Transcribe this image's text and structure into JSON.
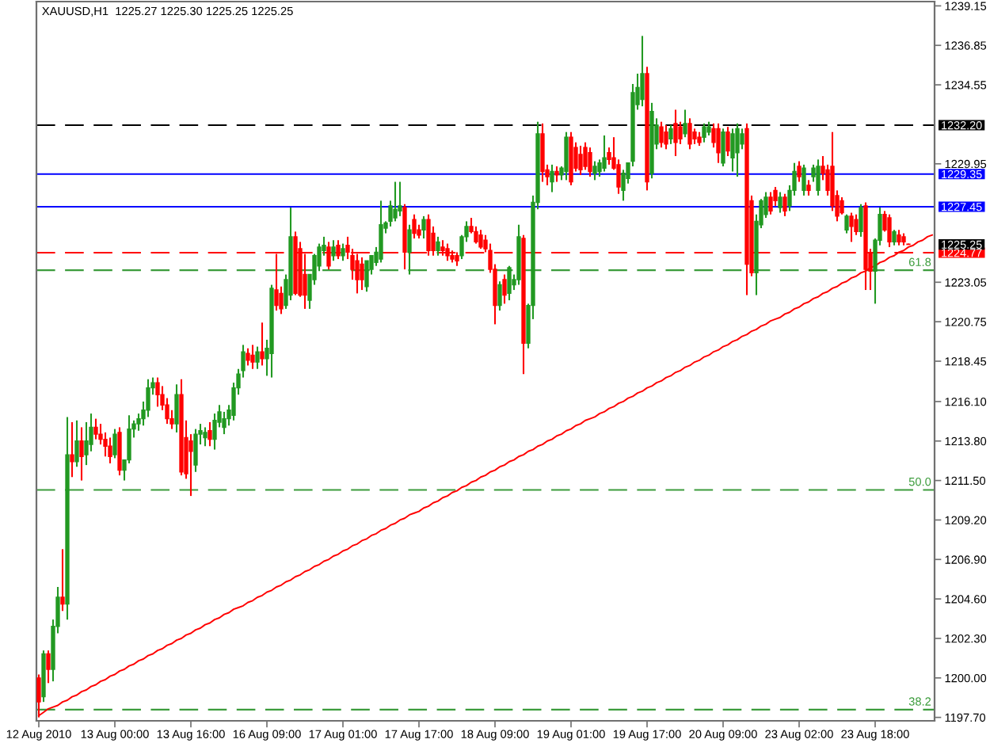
{
  "chart_data": {
    "type": "candlestick",
    "title": "XAUUSD,H1  1225.27 1225.30 1225.25 1225.25",
    "categories": [
      "12 Aug 2010",
      null,
      null,
      null,
      null,
      null,
      null,
      null,
      null,
      null,
      null,
      null,
      null,
      null,
      null,
      null,
      "13 Aug 00:00",
      null,
      null,
      null,
      null,
      null,
      null,
      null,
      null,
      null,
      null,
      null,
      null,
      null,
      null,
      null,
      "13 Aug 16:00",
      null,
      null,
      null,
      null,
      null,
      null,
      null,
      null,
      null,
      null,
      null,
      null,
      null,
      null,
      null,
      "16 Aug 09:00",
      null,
      null,
      null,
      null,
      null,
      null,
      null,
      null,
      null,
      null,
      null,
      null,
      null,
      null,
      null,
      "17 Aug 01:00",
      null,
      null,
      null,
      null,
      null,
      null,
      null,
      null,
      null,
      null,
      null,
      null,
      null,
      null,
      null,
      "17 Aug 17:00",
      null,
      null,
      null,
      null,
      null,
      null,
      null,
      null,
      null,
      null,
      null,
      null,
      null,
      null,
      null,
      "18 Aug 09:00",
      null,
      null,
      null,
      null,
      null,
      null,
      null,
      null,
      null,
      null,
      null,
      null,
      null,
      null,
      null,
      "19 Aug 01:00",
      null,
      null,
      null,
      null,
      null,
      null,
      null,
      null,
      null,
      null,
      null,
      null,
      null,
      null,
      null,
      "19 Aug 17:00",
      null,
      null,
      null,
      null,
      null,
      null,
      null,
      null,
      null,
      null,
      null,
      null,
      null,
      null,
      null,
      "20 Aug 09:00",
      null,
      null,
      null,
      null,
      null,
      null,
      null,
      null,
      null,
      null,
      null,
      null,
      null,
      null,
      null,
      "23 Aug 02:00",
      null,
      null,
      null,
      null,
      null,
      null,
      null,
      null,
      null,
      null,
      null,
      null,
      null,
      null,
      null,
      "23 Aug 18:00",
      null,
      null,
      null,
      null,
      null,
      null,
      null,
      null,
      null,
      null,
      null,
      null
    ],
    "ohlc": [
      [
        1200.0,
        1200.2,
        1197.7,
        1198.6
      ],
      [
        1198.9,
        1201.6,
        1198.6,
        1201.4
      ],
      [
        1201.4,
        1201.6,
        1199.7,
        1200.5
      ],
      [
        1200.5,
        1203.4,
        1199.8,
        1203.0
      ],
      [
        1203.0,
        1205.3,
        1202.6,
        1204.7
      ],
      [
        1204.7,
        1207.5,
        1203.9,
        1204.3
      ],
      [
        1204.3,
        1215.2,
        1203.4,
        1213.0
      ],
      [
        1213.0,
        1214.9,
        1211.7,
        1212.6
      ],
      [
        1212.6,
        1215.0,
        1212.3,
        1213.8
      ],
      [
        1213.8,
        1214.6,
        1211.5,
        1212.9
      ],
      [
        1213.0,
        1214.9,
        1212.4,
        1213.8
      ],
      [
        1213.6,
        1215.4,
        1213.2,
        1214.6
      ],
      [
        1214.6,
        1215.1,
        1213.9,
        1214.2
      ],
      [
        1214.2,
        1214.8,
        1213.6,
        1213.9
      ],
      [
        1213.9,
        1214.3,
        1212.9,
        1213.5
      ],
      [
        1213.5,
        1214.0,
        1212.5,
        1212.9
      ],
      [
        1213.0,
        1214.5,
        1212.8,
        1214.2
      ],
      [
        1214.3,
        1214.6,
        1211.8,
        1212.1
      ],
      [
        1212.1,
        1212.7,
        1211.5,
        1212.7
      ],
      [
        1212.7,
        1215.3,
        1212.5,
        1214.5
      ],
      [
        1214.5,
        1215.0,
        1214.0,
        1214.8
      ],
      [
        1214.8,
        1215.4,
        1214.4,
        1215.1
      ],
      [
        1215.1,
        1216.1,
        1214.7,
        1215.6
      ],
      [
        1215.6,
        1217.4,
        1215.2,
        1216.9
      ],
      [
        1216.9,
        1217.5,
        1216.5,
        1217.2
      ],
      [
        1217.2,
        1217.5,
        1215.8,
        1216.5
      ],
      [
        1216.5,
        1217.0,
        1215.6,
        1215.9
      ],
      [
        1215.9,
        1216.3,
        1214.8,
        1215.1
      ],
      [
        1215.1,
        1215.6,
        1214.5,
        1214.8
      ],
      [
        1214.8,
        1217.1,
        1214.3,
        1216.5
      ],
      [
        1216.5,
        1217.4,
        1211.8,
        1212.0
      ],
      [
        1214.0,
        1215.0,
        1211.6,
        1211.9
      ],
      [
        1213.8,
        1214.2,
        1210.6,
        1213.2
      ],
      [
        1212.4,
        1214.5,
        1212.0,
        1214.2
      ],
      [
        1214.2,
        1214.8,
        1213.6,
        1214.4
      ],
      [
        1214.0,
        1214.6,
        1213.5,
        1214.3
      ],
      [
        1214.4,
        1214.9,
        1213.5,
        1213.9
      ],
      [
        1213.9,
        1215.4,
        1213.3,
        1215.0
      ],
      [
        1214.9,
        1215.9,
        1214.6,
        1215.5
      ],
      [
        1214.6,
        1215.5,
        1214.2,
        1215.1
      ],
      [
        1215.1,
        1215.9,
        1214.7,
        1215.6
      ],
      [
        1215.3,
        1217.2,
        1215.0,
        1216.9
      ],
      [
        1216.9,
        1218.0,
        1216.5,
        1217.7
      ],
      [
        1217.9,
        1219.4,
        1217.5,
        1219.0
      ],
      [
        1218.9,
        1219.2,
        1218.2,
        1218.5
      ],
      [
        1218.8,
        1219.4,
        1218.0,
        1218.4
      ],
      [
        1218.4,
        1219.3,
        1218.0,
        1219.0
      ],
      [
        1219.0,
        1220.7,
        1218.2,
        1218.6
      ],
      [
        1218.6,
        1219.7,
        1217.6,
        1219.2
      ],
      [
        1218.9,
        1222.9,
        1217.5,
        1222.7
      ],
      [
        1222.6,
        1224.7,
        1221.4,
        1221.7
      ],
      [
        1222.4,
        1222.8,
        1221.2,
        1221.5
      ],
      [
        1221.7,
        1223.5,
        1221.5,
        1223.2
      ],
      [
        1222.3,
        1227.4,
        1222.0,
        1225.7
      ],
      [
        1225.7,
        1226.0,
        1222.3,
        1222.4
      ],
      [
        1225.0,
        1225.4,
        1222.2,
        1222.3
      ],
      [
        1223.5,
        1224.7,
        1221.5,
        1222.3
      ],
      [
        1222.0,
        1223.5,
        1221.5,
        1223.5
      ],
      [
        1223.2,
        1224.7,
        1222.9,
        1224.6
      ],
      [
        1224.0,
        1225.3,
        1223.7,
        1225.1
      ],
      [
        1224.9,
        1225.7,
        1224.6,
        1225.2
      ],
      [
        1225.1,
        1225.4,
        1223.8,
        1224.0
      ],
      [
        1224.6,
        1225.5,
        1224.3,
        1225.1
      ],
      [
        1225.2,
        1225.5,
        1224.4,
        1224.6
      ],
      [
        1224.6,
        1225.3,
        1224.3,
        1225.0
      ],
      [
        1225.2,
        1225.7,
        1224.4,
        1224.8
      ],
      [
        1224.6,
        1225.0,
        1223.2,
        1223.8
      ],
      [
        1224.3,
        1224.7,
        1222.4,
        1223.2
      ],
      [
        1224.1,
        1224.5,
        1222.6,
        1223.2
      ],
      [
        1222.8,
        1224.3,
        1222.5,
        1224.3
      ],
      [
        1223.8,
        1224.6,
        1223.5,
        1224.6
      ],
      [
        1224.2,
        1225.1,
        1224.0,
        1224.8
      ],
      [
        1224.4,
        1227.8,
        1224.2,
        1226.4
      ],
      [
        1226.2,
        1226.6,
        1225.9,
        1226.5
      ],
      [
        1226.6,
        1227.8,
        1226.3,
        1227.5
      ],
      [
        1226.8,
        1228.9,
        1226.6,
        1227.3
      ],
      [
        1227.2,
        1228.9,
        1226.9,
        1227.5
      ],
      [
        1227.4,
        1227.6,
        1223.8,
        1224.8
      ],
      [
        1224.8,
        1226.4,
        1223.5,
        1226.1
      ],
      [
        1226.7,
        1227.0,
        1225.6,
        1225.9
      ],
      [
        1226.1,
        1226.4,
        1225.6,
        1225.8
      ],
      [
        1226.1,
        1226.9,
        1225.6,
        1226.7
      ],
      [
        1226.7,
        1227.0,
        1224.6,
        1224.9
      ],
      [
        1225.9,
        1226.3,
        1224.6,
        1224.9
      ],
      [
        1224.9,
        1225.7,
        1224.6,
        1225.4
      ],
      [
        1225.1,
        1225.5,
        1224.6,
        1224.9
      ],
      [
        1225.0,
        1225.3,
        1224.3,
        1224.6
      ],
      [
        1224.6,
        1224.9,
        1224.2,
        1224.4
      ],
      [
        1224.6,
        1224.8,
        1224.0,
        1224.3
      ],
      [
        1224.6,
        1225.8,
        1224.4,
        1225.7
      ],
      [
        1225.7,
        1226.6,
        1225.4,
        1226.3
      ],
      [
        1226.3,
        1226.8,
        1225.9,
        1226.0
      ],
      [
        1226.0,
        1226.3,
        1225.3,
        1225.4
      ],
      [
        1225.8,
        1226.1,
        1225.0,
        1225.1
      ],
      [
        1225.5,
        1225.8,
        1224.8,
        1225.0
      ],
      [
        1224.9,
        1225.3,
        1223.6,
        1223.8
      ],
      [
        1223.8,
        1224.1,
        1220.6,
        1221.7
      ],
      [
        1221.7,
        1223.1,
        1221.4,
        1222.9
      ],
      [
        1223.2,
        1223.5,
        1221.8,
        1222.3
      ],
      [
        1222.4,
        1224.0,
        1222.0,
        1223.9
      ],
      [
        1222.9,
        1223.5,
        1222.6,
        1223.2
      ],
      [
        1223.2,
        1226.4,
        1222.9,
        1225.7
      ],
      [
        1225.6,
        1225.8,
        1217.7,
        1219.5
      ],
      [
        1219.5,
        1221.8,
        1219.2,
        1221.7
      ],
      [
        1221.7,
        1228.1,
        1220.9,
        1227.7
      ],
      [
        1227.7,
        1232.4,
        1227.3,
        1231.7
      ],
      [
        1231.7,
        1232.3,
        1228.9,
        1229.5
      ],
      [
        1229.6,
        1229.9,
        1228.7,
        1229.2
      ],
      [
        1228.9,
        1229.9,
        1228.3,
        1229.5
      ],
      [
        1229.5,
        1229.8,
        1228.9,
        1229.3
      ],
      [
        1229.3,
        1229.8,
        1229.0,
        1229.7
      ],
      [
        1229.5,
        1231.8,
        1229.0,
        1231.5
      ],
      [
        1231.5,
        1231.8,
        1228.7,
        1228.9
      ],
      [
        1230.9,
        1231.2,
        1229.5,
        1229.7
      ],
      [
        1230.5,
        1231.0,
        1229.3,
        1229.6
      ],
      [
        1230.9,
        1231.2,
        1229.6,
        1229.8
      ],
      [
        1230.6,
        1230.9,
        1229.2,
        1229.5
      ],
      [
        1229.4,
        1230.1,
        1229.0,
        1229.8
      ],
      [
        1229.5,
        1230.2,
        1229.2,
        1230.0
      ],
      [
        1229.7,
        1231.6,
        1229.5,
        1230.3
      ],
      [
        1230.6,
        1230.9,
        1229.9,
        1230.2
      ],
      [
        1230.3,
        1231.5,
        1229.6,
        1229.7
      ],
      [
        1229.9,
        1230.2,
        1228.2,
        1228.6
      ],
      [
        1228.4,
        1229.6,
        1227.8,
        1229.4
      ],
      [
        1229.1,
        1230.0,
        1228.8,
        1230.0
      ],
      [
        1230.1,
        1234.6,
        1229.8,
        1234.1
      ],
      [
        1233.4,
        1235.2,
        1233.1,
        1234.4
      ],
      [
        1233.7,
        1237.4,
        1233.3,
        1235.2
      ],
      [
        1235.2,
        1235.6,
        1228.4,
        1228.9
      ],
      [
        1229.4,
        1233.5,
        1229.1,
        1233.0
      ],
      [
        1231.1,
        1232.6,
        1230.8,
        1232.2
      ],
      [
        1232.1,
        1232.4,
        1230.9,
        1231.2
      ],
      [
        1231.8,
        1232.2,
        1230.8,
        1231.1
      ],
      [
        1231.4,
        1232.2,
        1231.1,
        1232.0
      ],
      [
        1232.3,
        1233.1,
        1230.4,
        1231.2
      ],
      [
        1232.1,
        1232.4,
        1231.1,
        1231.4
      ],
      [
        1231.7,
        1233.1,
        1231.5,
        1232.3
      ],
      [
        1232.3,
        1232.6,
        1230.8,
        1231.1
      ],
      [
        1231.8,
        1232.0,
        1231.1,
        1231.4
      ],
      [
        1231.5,
        1231.8,
        1231.0,
        1231.2
      ],
      [
        1231.5,
        1232.3,
        1231.2,
        1232.1
      ],
      [
        1231.8,
        1232.4,
        1231.6,
        1232.1
      ],
      [
        1232.0,
        1232.3,
        1230.9,
        1231.2
      ],
      [
        1232.0,
        1232.3,
        1230.0,
        1230.6
      ],
      [
        1230.0,
        1232.0,
        1229.8,
        1231.8
      ],
      [
        1231.8,
        1232.1,
        1230.4,
        1230.7
      ],
      [
        1230.3,
        1232.0,
        1229.5,
        1231.7
      ],
      [
        1230.6,
        1232.3,
        1229.2,
        1232.0
      ],
      [
        1231.1,
        1232.0,
        1230.8,
        1231.7
      ],
      [
        1232.0,
        1232.3,
        1222.3,
        1224.1
      ],
      [
        1227.8,
        1228.1,
        1223.4,
        1223.6
      ],
      [
        1223.6,
        1227.0,
        1222.3,
        1226.6
      ],
      [
        1226.4,
        1227.9,
        1226.2,
        1227.8
      ],
      [
        1227.0,
        1228.3,
        1226.8,
        1228.0
      ],
      [
        1228.0,
        1228.3,
        1227.0,
        1227.2
      ],
      [
        1228.4,
        1228.6,
        1227.5,
        1227.8
      ],
      [
        1227.4,
        1228.3,
        1227.1,
        1228.0
      ],
      [
        1228.0,
        1228.2,
        1226.9,
        1227.2
      ],
      [
        1227.5,
        1228.7,
        1227.2,
        1228.4
      ],
      [
        1228.4,
        1230.0,
        1228.1,
        1229.5
      ],
      [
        1229.8,
        1230.1,
        1228.9,
        1229.2
      ],
      [
        1228.4,
        1229.9,
        1228.1,
        1229.7
      ],
      [
        1228.7,
        1229.0,
        1228.1,
        1228.4
      ],
      [
        1229.2,
        1229.9,
        1228.9,
        1229.7
      ],
      [
        1228.4,
        1230.2,
        1228.1,
        1229.8
      ],
      [
        1229.8,
        1230.4,
        1229.0,
        1229.4
      ],
      [
        1229.6,
        1229.9,
        1228.1,
        1228.4
      ],
      [
        1229.8,
        1231.8,
        1227.2,
        1227.5
      ],
      [
        1228.1,
        1228.4,
        1226.6,
        1226.9
      ],
      [
        1227.8,
        1228.0,
        1227.0,
        1227.1
      ],
      [
        1226.1,
        1227.0,
        1225.9,
        1226.9
      ],
      [
        1226.9,
        1227.1,
        1225.4,
        1226.3
      ],
      [
        1226.7,
        1227.0,
        1225.8,
        1226.0
      ],
      [
        1226.0,
        1227.6,
        1225.7,
        1227.4
      ],
      [
        1227.5,
        1227.7,
        1222.6,
        1223.8
      ],
      [
        1224.7,
        1225.0,
        1222.6,
        1223.7
      ],
      [
        1223.7,
        1225.6,
        1221.8,
        1225.5
      ],
      [
        1225.5,
        1227.4,
        1225.2,
        1227.0
      ],
      [
        1227.0,
        1227.2,
        1226.0,
        1226.1
      ],
      [
        1226.8,
        1227.0,
        1225.1,
        1225.4
      ],
      [
        1225.4,
        1226.1,
        1225.2,
        1226.0
      ],
      [
        1225.8,
        1226.1,
        1225.2,
        1225.4
      ],
      [
        1225.7,
        1225.9,
        1225.2,
        1225.4
      ],
      [
        1225.27,
        1225.3,
        1225.25,
        1225.25
      ],
      null,
      null,
      null,
      null,
      null
    ],
    "colors": [
      "#ff0000",
      "#229922",
      "#ff0000",
      "#229922",
      "#229922",
      "#ff0000",
      "#229922",
      "#ff0000",
      "#229922",
      "#ff0000",
      "#229922",
      "#229922",
      "#ff0000",
      "#ff0000",
      "#ff0000",
      "#ff0000",
      "#229922",
      "#ff0000",
      "#229922",
      "#229922",
      "#229922",
      "#229922",
      "#229922",
      "#229922",
      "#229922",
      "#ff0000",
      "#ff0000",
      "#ff0000",
      "#ff0000",
      "#229922",
      "#ff0000",
      "#ff0000",
      "#ff0000",
      "#229922",
      "#229922",
      "#229922",
      "#ff0000",
      "#229922",
      "#229922",
      "#229922",
      "#229922",
      "#229922",
      "#229922",
      "#229922",
      "#ff0000",
      "#ff0000",
      "#229922",
      "#ff0000",
      "#229922",
      "#229922",
      "#ff0000",
      "#ff0000",
      "#229922",
      "#229922",
      "#ff0000",
      "#ff0000",
      "#ff0000",
      "#229922",
      "#229922",
      "#229922",
      "#229922",
      "#ff0000",
      "#229922",
      "#ff0000",
      "#229922",
      "#ff0000",
      "#ff0000",
      "#ff0000",
      "#ff0000",
      "#229922",
      "#229922",
      "#229922",
      "#229922",
      "#229922",
      "#229922",
      "#229922",
      "#229922",
      "#ff0000",
      "#229922",
      "#ff0000",
      "#ff0000",
      "#229922",
      "#ff0000",
      "#ff0000",
      "#229922",
      "#ff0000",
      "#ff0000",
      "#ff0000",
      "#ff0000",
      "#229922",
      "#229922",
      "#ff0000",
      "#ff0000",
      "#ff0000",
      "#ff0000",
      "#ff0000",
      "#ff0000",
      "#229922",
      "#ff0000",
      "#229922",
      "#229922",
      "#229922",
      "#ff0000",
      "#229922",
      "#229922",
      "#229922",
      "#ff0000",
      "#ff0000",
      "#229922",
      "#ff0000",
      "#229922",
      "#229922",
      "#ff0000",
      "#ff0000",
      "#ff0000",
      "#ff0000",
      "#ff0000",
      "#229922",
      "#229922",
      "#229922",
      "#ff0000",
      "#ff0000",
      "#ff0000",
      "#229922",
      "#229922",
      "#229922",
      "#229922",
      "#229922",
      "#ff0000",
      "#229922",
      "#229922",
      "#ff0000",
      "#ff0000",
      "#229922",
      "#ff0000",
      "#ff0000",
      "#229922",
      "#ff0000",
      "#ff0000",
      "#ff0000",
      "#229922",
      "#229922",
      "#ff0000",
      "#ff0000",
      "#229922",
      "#ff0000",
      "#229922",
      "#229922",
      "#229922",
      "#ff0000",
      "#ff0000",
      "#229922",
      "#229922",
      "#229922",
      "#ff0000",
      "#ff0000",
      "#229922",
      "#ff0000",
      "#229922",
      "#229922",
      "#ff0000",
      "#229922",
      "#ff0000",
      "#229922",
      "#229922",
      "#ff0000",
      "#ff0000",
      "#ff0000",
      "#ff0000",
      "#ff0000",
      "#229922",
      "#ff0000",
      "#ff0000",
      "#229922",
      "#ff0000",
      "#ff0000",
      "#229922",
      "#229922",
      "#ff0000",
      "#ff0000",
      "#229922",
      "#ff0000",
      "#ff0000",
      "#ff0000",
      null,
      null,
      null,
      null,
      null
    ],
    "series": [
      {
        "type": "line",
        "color": "#ff0000",
        "values": [
          1197.8,
          1198.0,
          1198.2,
          1198.3,
          1198.4,
          1198.6,
          1198.7,
          1198.9,
          1199.0,
          1199.2,
          1199.3,
          1199.5,
          1199.6,
          1199.8,
          1199.9,
          1200.1,
          1200.2,
          1200.4,
          1200.5,
          1200.7,
          1200.8,
          1201.0,
          1201.1,
          1201.3,
          1201.4,
          1201.6,
          1201.7,
          1201.9,
          1202.0,
          1202.2,
          1202.3,
          1202.5,
          1202.6,
          1202.8,
          1202.9,
          1203.1,
          1203.2,
          1203.4,
          1203.5,
          1203.7,
          1203.8,
          1204.0,
          1204.1,
          1204.2,
          1204.4,
          1204.5,
          1204.7,
          1204.8,
          1205.0,
          1205.1,
          1205.3,
          1205.4,
          1205.6,
          1205.7,
          1205.9,
          1206.0,
          1206.2,
          1206.3,
          1206.5,
          1206.6,
          1206.8,
          1206.9,
          1207.1,
          1207.2,
          1207.4,
          1207.5,
          1207.7,
          1207.8,
          1208.0,
          1208.1,
          1208.3,
          1208.4,
          1208.6,
          1208.7,
          1208.9,
          1209.0,
          1209.2,
          1209.3,
          1209.5,
          1209.6,
          1209.7,
          1209.9,
          1210.0,
          1210.2,
          1210.3,
          1210.5,
          1210.6,
          1210.8,
          1210.9,
          1211.1,
          1211.2,
          1211.4,
          1211.5,
          1211.7,
          1211.8,
          1212.0,
          1212.1,
          1212.3,
          1212.4,
          1212.6,
          1212.7,
          1212.9,
          1213.0,
          1213.2,
          1213.3,
          1213.5,
          1213.6,
          1213.8,
          1213.9,
          1214.1,
          1214.2,
          1214.4,
          1214.5,
          1214.7,
          1214.8,
          1215.0,
          1215.1,
          1215.2,
          1215.4,
          1215.5,
          1215.7,
          1215.8,
          1216.0,
          1216.1,
          1216.3,
          1216.4,
          1216.6,
          1216.7,
          1216.9,
          1217.0,
          1217.2,
          1217.3,
          1217.5,
          1217.6,
          1217.8,
          1217.9,
          1218.1,
          1218.2,
          1218.4,
          1218.5,
          1218.7,
          1218.8,
          1219.0,
          1219.1,
          1219.3,
          1219.4,
          1219.6,
          1219.7,
          1219.9,
          1220.0,
          1220.2,
          1220.3,
          1220.5,
          1220.6,
          1220.8,
          1220.9,
          1221.0,
          1221.2,
          1221.3,
          1221.5,
          1221.6,
          1221.8,
          1221.9,
          1222.1,
          1222.2,
          1222.4,
          1222.5,
          1222.7,
          1222.8,
          1223.0,
          1223.1,
          1223.3,
          1223.4,
          1223.6,
          1223.7,
          1223.9,
          1224.0,
          1224.2,
          1224.3,
          1224.5,
          1224.6,
          1224.8,
          1224.9,
          1225.1,
          1225.2,
          1225.4,
          1225.5,
          1225.7,
          1225.8
        ]
      }
    ],
    "ylim": [
      1197.5,
      1239.4
    ],
    "yticks": [
      {
        "value": 1197.7,
        "label": "1197.70"
      },
      {
        "value": 1200,
        "label": "1200.00"
      },
      {
        "value": 1202.3,
        "label": "1202.30"
      },
      {
        "value": 1204.6,
        "label": "1204.60"
      },
      {
        "value": 1206.9,
        "label": "1206.90"
      },
      {
        "value": 1209.2,
        "label": "1209.20"
      },
      {
        "value": 1211.5,
        "label": "1211.50"
      },
      {
        "value": 1213.8,
        "label": "1213.80"
      },
      {
        "value": 1216.1,
        "label": "1216.10"
      },
      1218.45,
      1220.75,
      1223.05,
      1229.95,
      1234.55,
      1236.85,
      1239.15
    ],
    "ref_lines": [
      {
        "axis": "y",
        "value": 1232.2,
        "label": "1232.20",
        "color": "#000000",
        "line_style": "dashed"
      },
      {
        "axis": "y",
        "value": 1229.35,
        "label": "1229.35",
        "color": "#0000ff",
        "line_style": "solid"
      },
      {
        "axis": "y",
        "value": 1227.45,
        "label": "1227.45",
        "color": "#0000ff",
        "line_style": "solid"
      },
      {
        "axis": "y",
        "value": 1224.77,
        "label": "1224.77",
        "color": "#ff0000",
        "line_style": "dashed"
      },
      {
        "axis": "y",
        "value": 1223.75,
        "color": "#3c9c3c",
        "line_style": "dashed"
      },
      {
        "axis": "y",
        "value": 1210.95,
        "color": "#3c9c3c",
        "line_style": "dashed"
      },
      {
        "axis": "y",
        "value": 1198.15,
        "color": "#3c9c3c",
        "line_style": "dashed"
      }
    ],
    "annotations": [
      {
        "text": "61.8",
        "y": 1223.75
      },
      {
        "text": "50.0",
        "y": 1210.95
      },
      {
        "text": "38.2",
        "y": 1198.15
      },
      "1225.25"
    ]
  }
}
